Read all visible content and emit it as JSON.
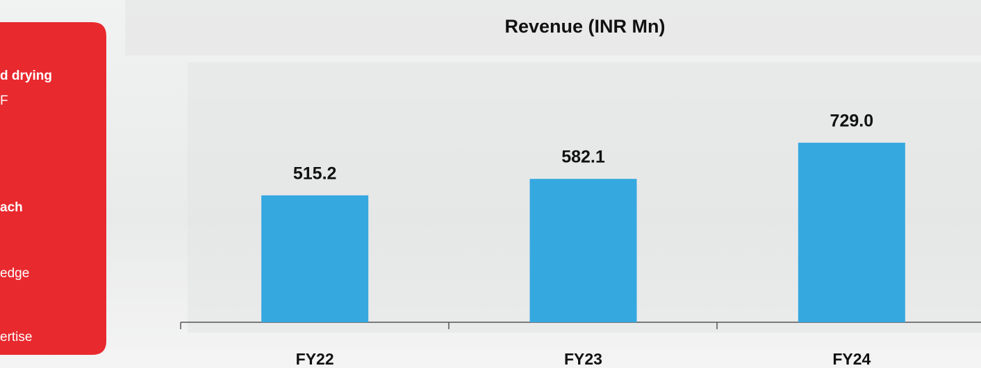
{
  "side_panel": {
    "texts": [
      "d drying",
      "F",
      "ach",
      "edge",
      "ertise"
    ]
  },
  "chart_data": {
    "type": "bar",
    "title": "Revenue (INR Mn)",
    "categories": [
      "FY22",
      "FY23",
      "FY24"
    ],
    "values": [
      515.2,
      582.1,
      729.0
    ],
    "value_labels": [
      "515.2",
      "582.1",
      "729.0"
    ],
    "color": "#35a8e0",
    "ylim": [
      0,
      1300
    ]
  }
}
